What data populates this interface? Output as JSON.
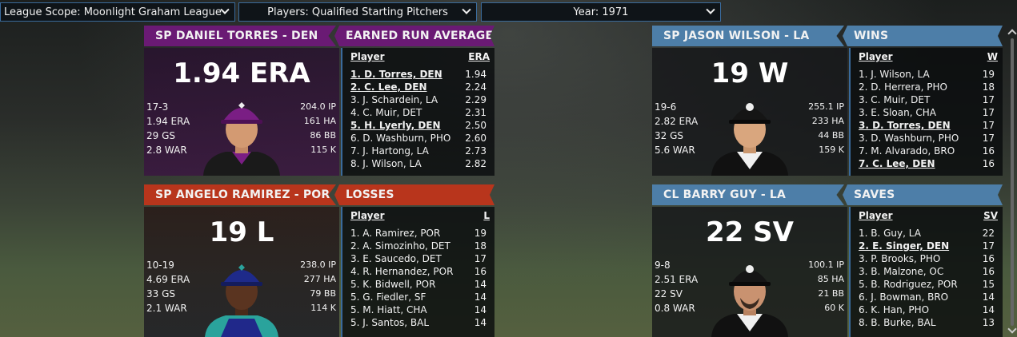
{
  "filters": {
    "league": "League Scope: Moonlight Graham League",
    "players": "Players: Qualified Starting Pitchers",
    "year": "Year: 1971"
  },
  "cards": {
    "era": {
      "player_header": "SP DANIEL TORRES - DEN",
      "big": "1.94 ERA",
      "left": [
        "17-3",
        "1.94 ERA",
        "29 GS",
        "2.8 WAR"
      ],
      "right": [
        "204.0 IP",
        "161 HA",
        "86 BB",
        "115 K"
      ],
      "list_header": "EARNED RUN AVERAGE",
      "col_player": "Player",
      "col_stat": "ERA",
      "rows": [
        {
          "name": "1. D. Torres, DEN",
          "val": "1.94",
          "hl": true
        },
        {
          "name": "2. C. Lee, DEN",
          "val": "2.24",
          "hl": true
        },
        {
          "name": "3. J. Schardein, LA",
          "val": "2.29",
          "hl": false
        },
        {
          "name": "4. C. Muir, DET",
          "val": "2.31",
          "hl": false
        },
        {
          "name": "5. H. Lyerly, DEN",
          "val": "2.50",
          "hl": true
        },
        {
          "name": "6. D. Washburn, PHO",
          "val": "2.60",
          "hl": false
        },
        {
          "name": "7. J. Hartong, LA",
          "val": "2.73",
          "hl": false
        },
        {
          "name": "8. J. Wilson, LA",
          "val": "2.82",
          "hl": false
        }
      ]
    },
    "wins": {
      "player_header": "SP JASON WILSON - LA",
      "big": "19 W",
      "left": [
        "19-6",
        "2.82 ERA",
        "32 GS",
        "5.6 WAR"
      ],
      "right": [
        "255.1 IP",
        "233 HA",
        "44 BB",
        "159 K"
      ],
      "list_header": "WINS",
      "col_player": "Player",
      "col_stat": "W",
      "rows": [
        {
          "name": "1. J. Wilson, LA",
          "val": "19",
          "hl": false
        },
        {
          "name": "2. D. Herrera, PHO",
          "val": "18",
          "hl": false
        },
        {
          "name": "3. C. Muir, DET",
          "val": "17",
          "hl": false
        },
        {
          "name": "3. E. Sloan, CHA",
          "val": "17",
          "hl": false
        },
        {
          "name": "3. D. Torres, DEN",
          "val": "17",
          "hl": true
        },
        {
          "name": "3. D. Washburn, PHO",
          "val": "17",
          "hl": false
        },
        {
          "name": "7. M. Alvarado, BRO",
          "val": "16",
          "hl": false
        },
        {
          "name": "7. C. Lee, DEN",
          "val": "16",
          "hl": true
        }
      ]
    },
    "losses": {
      "player_header": "SP ANGELO RAMIREZ - POR",
      "big": "19 L",
      "left": [
        "10-19",
        "4.69 ERA",
        "33 GS",
        "2.1 WAR"
      ],
      "right": [
        "238.0 IP",
        "277 HA",
        "79 BB",
        "114 K"
      ],
      "list_header": "LOSSES",
      "col_player": "Player",
      "col_stat": "L",
      "rows": [
        {
          "name": "1. A. Ramirez, POR",
          "val": "19",
          "hl": false
        },
        {
          "name": "2. A. Simozinho, DET",
          "val": "18",
          "hl": false
        },
        {
          "name": "3. E. Saucedo, DET",
          "val": "17",
          "hl": false
        },
        {
          "name": "4. R. Hernandez, POR",
          "val": "16",
          "hl": false
        },
        {
          "name": "5. K. Bidwell, POR",
          "val": "14",
          "hl": false
        },
        {
          "name": "5. G. Fiedler, SF",
          "val": "14",
          "hl": false
        },
        {
          "name": "5. M. Hiatt, CHA",
          "val": "14",
          "hl": false
        },
        {
          "name": "5. J. Santos, BAL",
          "val": "14",
          "hl": false
        }
      ]
    },
    "saves": {
      "player_header": "CL BARRY GUY - LA",
      "big": "22 SV",
      "left": [
        "9-8",
        "2.51 ERA",
        "22 SV",
        "0.8 WAR"
      ],
      "right": [
        "100.1 IP",
        "85 HA",
        "21 BB",
        "60 K"
      ],
      "list_header": "SAVES",
      "col_player": "Player",
      "col_stat": "SV",
      "rows": [
        {
          "name": "1. B. Guy, LA",
          "val": "22",
          "hl": false
        },
        {
          "name": "2. E. Singer, DEN",
          "val": "17",
          "hl": true
        },
        {
          "name": "3. P. Brooks, PHO",
          "val": "16",
          "hl": false
        },
        {
          "name": "3. B. Malzone, OC",
          "val": "16",
          "hl": false
        },
        {
          "name": "5. B. Rodriguez, POR",
          "val": "15",
          "hl": false
        },
        {
          "name": "6. J. Bowman, BRO",
          "val": "14",
          "hl": false
        },
        {
          "name": "6. K. Han, PHO",
          "val": "14",
          "hl": false
        },
        {
          "name": "8. B. Burke, BAL",
          "val": "13",
          "hl": false
        }
      ]
    }
  },
  "colors": {
    "purple": "#6a1a74",
    "red": "#b8351c",
    "blue": "#4d7ea8",
    "dropdown_border": "#3a6b9c"
  }
}
